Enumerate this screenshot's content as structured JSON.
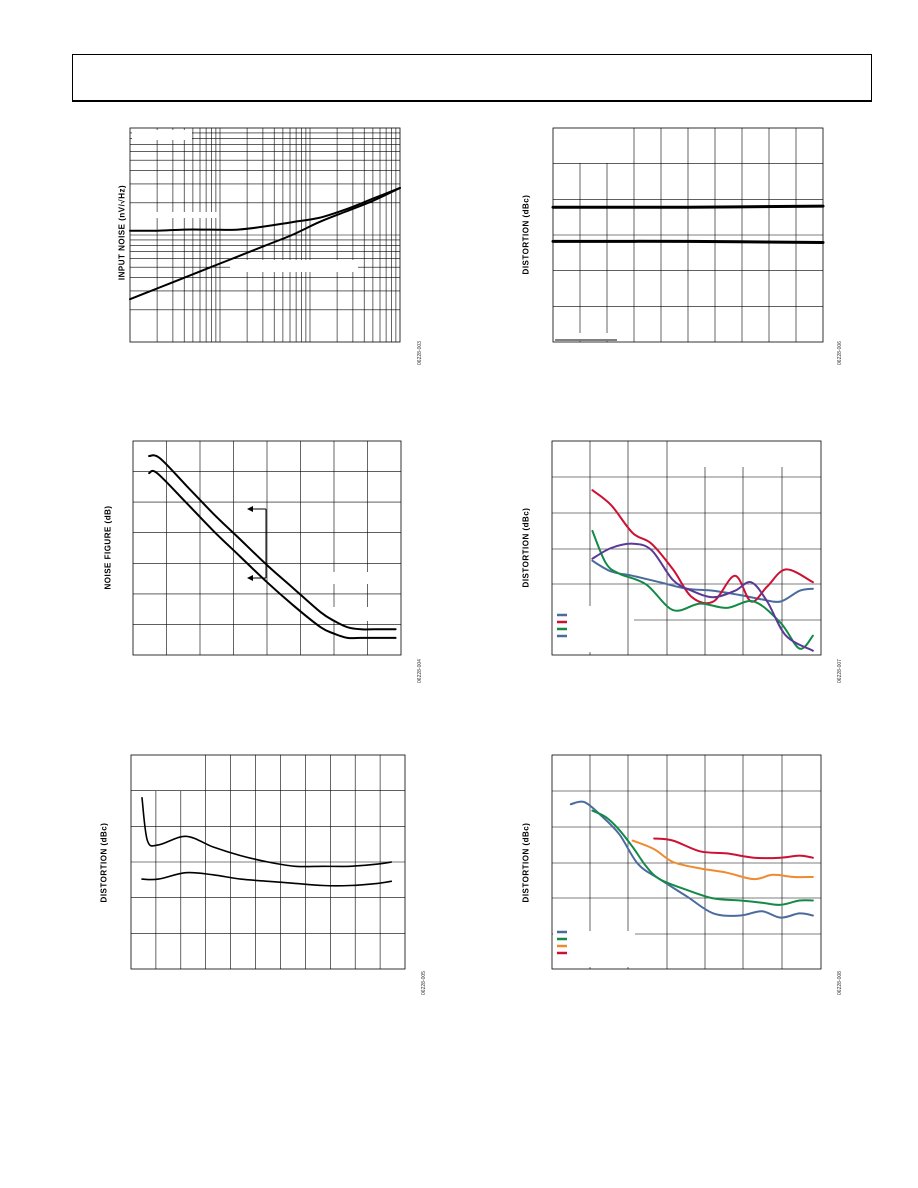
{
  "page": {
    "header_text": ""
  },
  "chart_data": [
    {
      "id": "input-noise",
      "type": "line",
      "ylabel": "INPUT NOISE (nV/√Hz)",
      "figure_id": "06228-003",
      "xscale": "log",
      "yscale": "log",
      "grid": true,
      "series": [
        {
          "x": [
            0,
            0.1,
            0.2,
            0.3,
            0.4,
            0.5,
            0.6,
            0.7,
            0.8,
            0.9,
            1.0
          ],
          "y": [
            0.52,
            0.52,
            0.525,
            0.525,
            0.525,
            0.54,
            0.56,
            0.58,
            0.62,
            0.67,
            0.72
          ],
          "color": "#000000"
        },
        {
          "x": [
            0,
            0.1,
            0.2,
            0.3,
            0.4,
            0.5,
            0.6,
            0.7,
            0.8,
            0.9,
            1.0
          ],
          "y": [
            0.2,
            0.25,
            0.3,
            0.35,
            0.4,
            0.45,
            0.5,
            0.56,
            0.61,
            0.66,
            0.72
          ],
          "color": "#000000"
        }
      ]
    },
    {
      "id": "distortion-flat",
      "type": "line",
      "ylabel": "DISTORTION (dBc)",
      "figure_id": "06228-006",
      "grid": true,
      "series": [
        {
          "x": [
            0,
            0.5,
            1.0
          ],
          "y": [
            0.63,
            0.63,
            0.635
          ],
          "color": "#000000"
        },
        {
          "x": [
            0,
            0.5,
            1.0
          ],
          "y": [
            0.47,
            0.47,
            0.465
          ],
          "color": "#000000"
        }
      ]
    },
    {
      "id": "noise-figure",
      "type": "line",
      "ylabel": "NOISE FIGURE (dB)",
      "figure_id": "06228-004",
      "grid": true,
      "series": [
        {
          "x": [
            0.06,
            0.1,
            0.2,
            0.3,
            0.4,
            0.5,
            0.6,
            0.7,
            0.75,
            0.8,
            0.85,
            0.9,
            0.98
          ],
          "y": [
            0.93,
            0.92,
            0.79,
            0.66,
            0.54,
            0.42,
            0.31,
            0.2,
            0.16,
            0.13,
            0.12,
            0.12,
            0.12
          ],
          "color": "#000000"
        },
        {
          "x": [
            0.06,
            0.09,
            0.2,
            0.3,
            0.4,
            0.5,
            0.6,
            0.7,
            0.75,
            0.8,
            0.85,
            0.9,
            0.98
          ],
          "y": [
            0.85,
            0.85,
            0.71,
            0.58,
            0.46,
            0.34,
            0.23,
            0.13,
            0.1,
            0.08,
            0.08,
            0.08,
            0.08
          ],
          "color": "#000000"
        }
      ]
    },
    {
      "id": "distortion-4",
      "type": "line",
      "ylabel": "DISTORTION (dBc)",
      "figure_id": "06228-007",
      "grid": true,
      "series": [
        {
          "x": [
            0.15,
            0.22,
            0.3,
            0.4,
            0.5,
            0.6,
            0.7,
            0.78,
            0.85,
            0.92,
            0.97
          ],
          "y": [
            0.44,
            0.39,
            0.37,
            0.34,
            0.31,
            0.3,
            0.28,
            0.26,
            0.25,
            0.3,
            0.31
          ],
          "color": "#4b6b9e"
        },
        {
          "x": [
            0.15,
            0.22,
            0.3,
            0.37,
            0.45,
            0.52,
            0.6,
            0.68,
            0.74,
            0.8,
            0.87,
            0.97
          ],
          "y": [
            0.77,
            0.7,
            0.57,
            0.52,
            0.4,
            0.27,
            0.25,
            0.37,
            0.25,
            0.32,
            0.4,
            0.34
          ],
          "color": "#cc1133"
        },
        {
          "x": [
            0.15,
            0.2,
            0.25,
            0.35,
            0.45,
            0.55,
            0.65,
            0.75,
            0.85,
            0.92,
            0.97
          ],
          "y": [
            0.58,
            0.43,
            0.38,
            0.33,
            0.21,
            0.24,
            0.22,
            0.25,
            0.15,
            0.03,
            0.09
          ],
          "color": "#138a47"
        },
        {
          "x": [
            0.15,
            0.22,
            0.3,
            0.37,
            0.45,
            0.52,
            0.6,
            0.68,
            0.74,
            0.8,
            0.87,
            0.97
          ],
          "y": [
            0.45,
            0.5,
            0.52,
            0.49,
            0.35,
            0.3,
            0.27,
            0.3,
            0.34,
            0.25,
            0.09,
            0.02
          ],
          "color": "#5a3a96"
        }
      ]
    },
    {
      "id": "distortion-2",
      "type": "line",
      "ylabel": "DISTORTION (dBc)",
      "figure_id": "06228-005",
      "grid": true,
      "series": [
        {
          "x": [
            0.04,
            0.06,
            0.1,
            0.2,
            0.3,
            0.4,
            0.5,
            0.6,
            0.7,
            0.8,
            0.9,
            0.95
          ],
          "y": [
            0.8,
            0.6,
            0.58,
            0.62,
            0.57,
            0.53,
            0.5,
            0.48,
            0.48,
            0.48,
            0.49,
            0.5
          ],
          "color": "#000000"
        },
        {
          "x": [
            0.04,
            0.1,
            0.2,
            0.3,
            0.4,
            0.5,
            0.6,
            0.7,
            0.8,
            0.9,
            0.95
          ],
          "y": [
            0.42,
            0.42,
            0.45,
            0.44,
            0.42,
            0.41,
            0.4,
            0.39,
            0.39,
            0.4,
            0.41
          ],
          "color": "#000000"
        }
      ]
    },
    {
      "id": "distortion-4b",
      "type": "line",
      "ylabel": "DISTORTION (dBc)",
      "figure_id": "06228-008",
      "grid": true,
      "series": [
        {
          "x": [
            0.07,
            0.12,
            0.18,
            0.25,
            0.32,
            0.4,
            0.5,
            0.6,
            0.7,
            0.78,
            0.85,
            0.92,
            0.97
          ],
          "y": [
            0.77,
            0.78,
            0.72,
            0.63,
            0.49,
            0.42,
            0.34,
            0.26,
            0.25,
            0.27,
            0.24,
            0.26,
            0.25
          ],
          "color": "#4b6b9e"
        },
        {
          "x": [
            0.15,
            0.2,
            0.25,
            0.3,
            0.35,
            0.4,
            0.5,
            0.6,
            0.7,
            0.78,
            0.85,
            0.92,
            0.97
          ],
          "y": [
            0.74,
            0.71,
            0.65,
            0.57,
            0.48,
            0.42,
            0.37,
            0.33,
            0.32,
            0.31,
            0.3,
            0.32,
            0.32
          ],
          "color": "#138a47"
        },
        {
          "x": [
            0.3,
            0.38,
            0.45,
            0.55,
            0.65,
            0.75,
            0.82,
            0.9,
            0.97
          ],
          "y": [
            0.6,
            0.56,
            0.5,
            0.47,
            0.45,
            0.42,
            0.44,
            0.43,
            0.43
          ],
          "color": "#f08a30"
        },
        {
          "x": [
            0.38,
            0.45,
            0.55,
            0.65,
            0.75,
            0.85,
            0.92,
            0.97
          ],
          "y": [
            0.61,
            0.6,
            0.55,
            0.54,
            0.52,
            0.52,
            0.53,
            0.52
          ],
          "color": "#cc1133"
        }
      ]
    }
  ]
}
